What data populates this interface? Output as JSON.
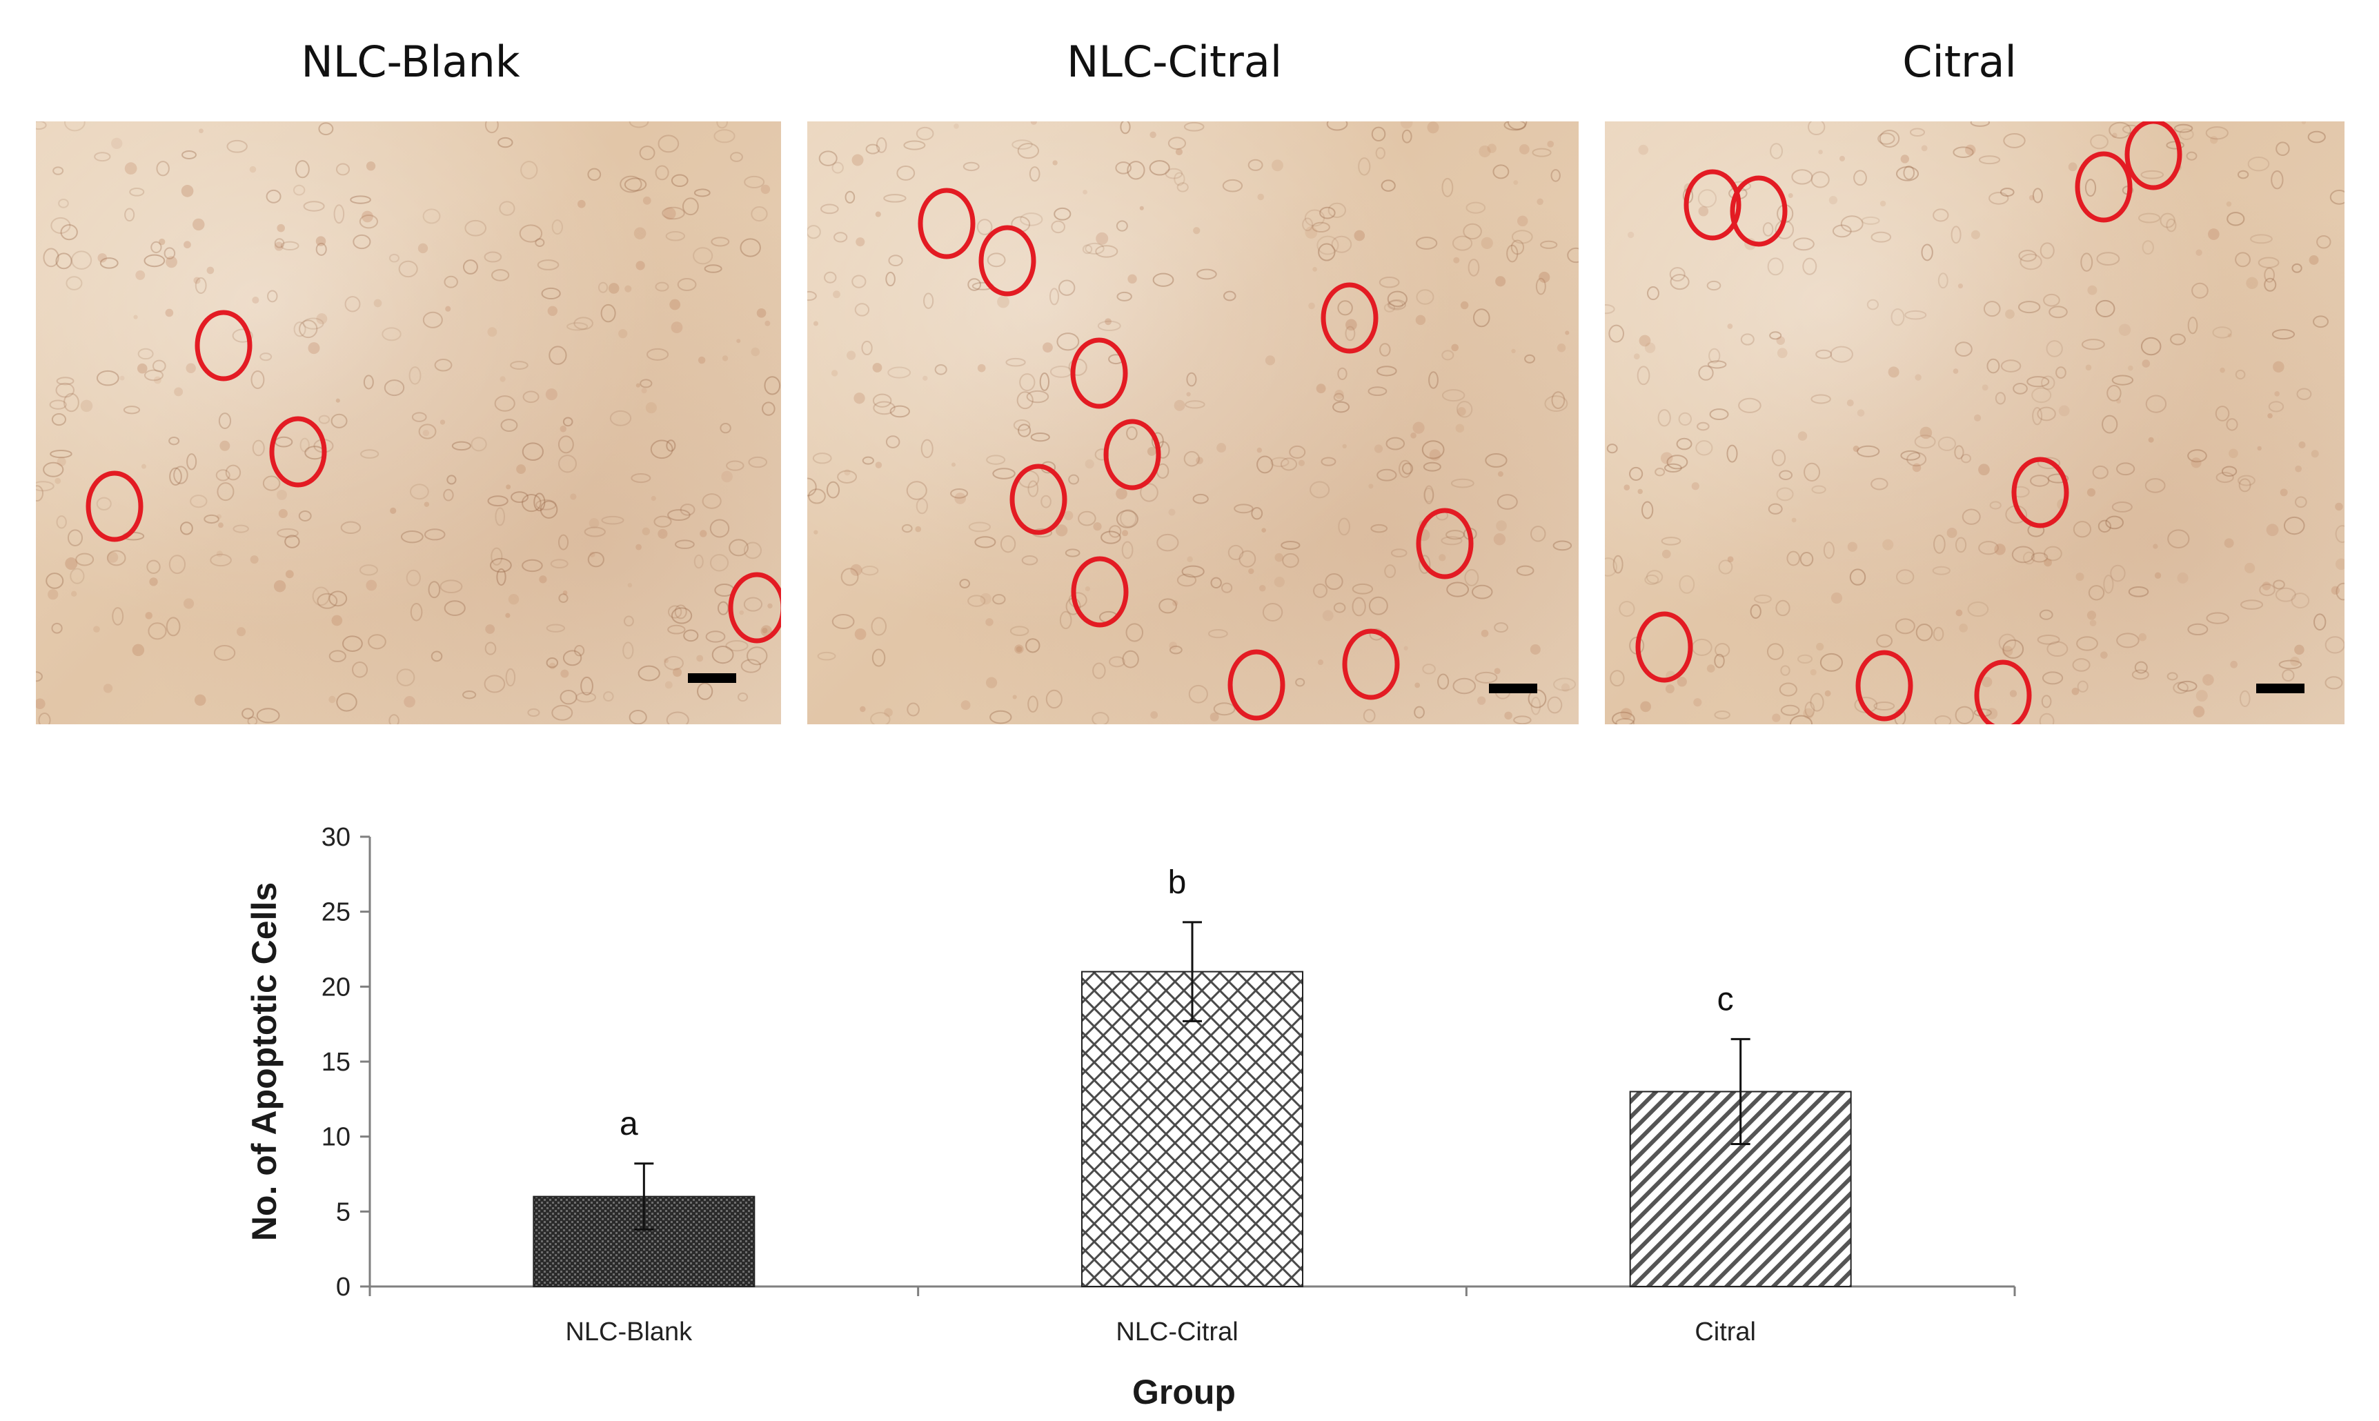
{
  "panels": [
    {
      "title": "NLC-Blank"
    },
    {
      "title": "NLC-Citral"
    },
    {
      "title": "Citral"
    }
  ],
  "colors": {
    "circle": "#e31b23",
    "scale_bar": "#000000",
    "bar_edge": "#222222"
  },
  "chart_data": {
    "type": "bar",
    "title": "",
    "xlabel": "Group",
    "ylabel": "No. of Apoptotic Cells",
    "categories": [
      "NLC-Blank",
      "NLC-Citral",
      "Citral"
    ],
    "values": [
      6,
      21,
      13
    ],
    "errors": [
      2.2,
      3.3,
      3.5
    ],
    "significance_labels": [
      "a",
      "b",
      "c"
    ],
    "bar_patterns": [
      "dense-dots",
      "crosshatch",
      "diagonal"
    ],
    "ylim": [
      0,
      30
    ],
    "yticks": [
      0,
      5,
      10,
      15,
      20,
      25,
      30
    ],
    "grid": false,
    "legend": "none"
  }
}
